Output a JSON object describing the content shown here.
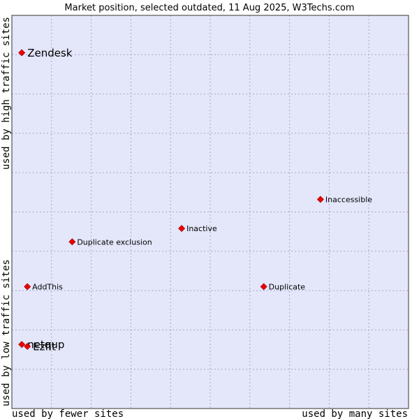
{
  "chart_data": {
    "type": "scatter",
    "title": "Market position, selected outdated, 11 Aug 2025, W3Techs.com",
    "xlabel_left": "used by fewer sites",
    "xlabel_right": "used by many sites",
    "ylabel_bottom": "used by low traffic sites",
    "ylabel_top": "used by high traffic sites",
    "xlim": [
      0,
      100
    ],
    "ylim": [
      0,
      100
    ],
    "grid": true,
    "marker_color": "#ee0000",
    "plot_background": "#e4e6fa",
    "points": [
      {
        "label": "Zendesk",
        "x": 2.5,
        "y": 90.5,
        "emphasis": true
      },
      {
        "label": "Inaccessible",
        "x": 77.8,
        "y": 53.2,
        "emphasis": false
      },
      {
        "label": "Inactive",
        "x": 42.8,
        "y": 45.8,
        "emphasis": false
      },
      {
        "label": "Duplicate exclusion",
        "x": 15.2,
        "y": 42.4,
        "emphasis": false
      },
      {
        "label": "AddThis",
        "x": 3.9,
        "y": 31.0,
        "emphasis": false
      },
      {
        "label": "Duplicate",
        "x": 63.5,
        "y": 31.0,
        "emphasis": false
      },
      {
        "label": "netqup",
        "x": 2.5,
        "y": 16.3,
        "emphasis": true
      },
      {
        "label": "Ezfit",
        "x": 3.9,
        "y": 15.8,
        "emphasis": true
      }
    ]
  }
}
